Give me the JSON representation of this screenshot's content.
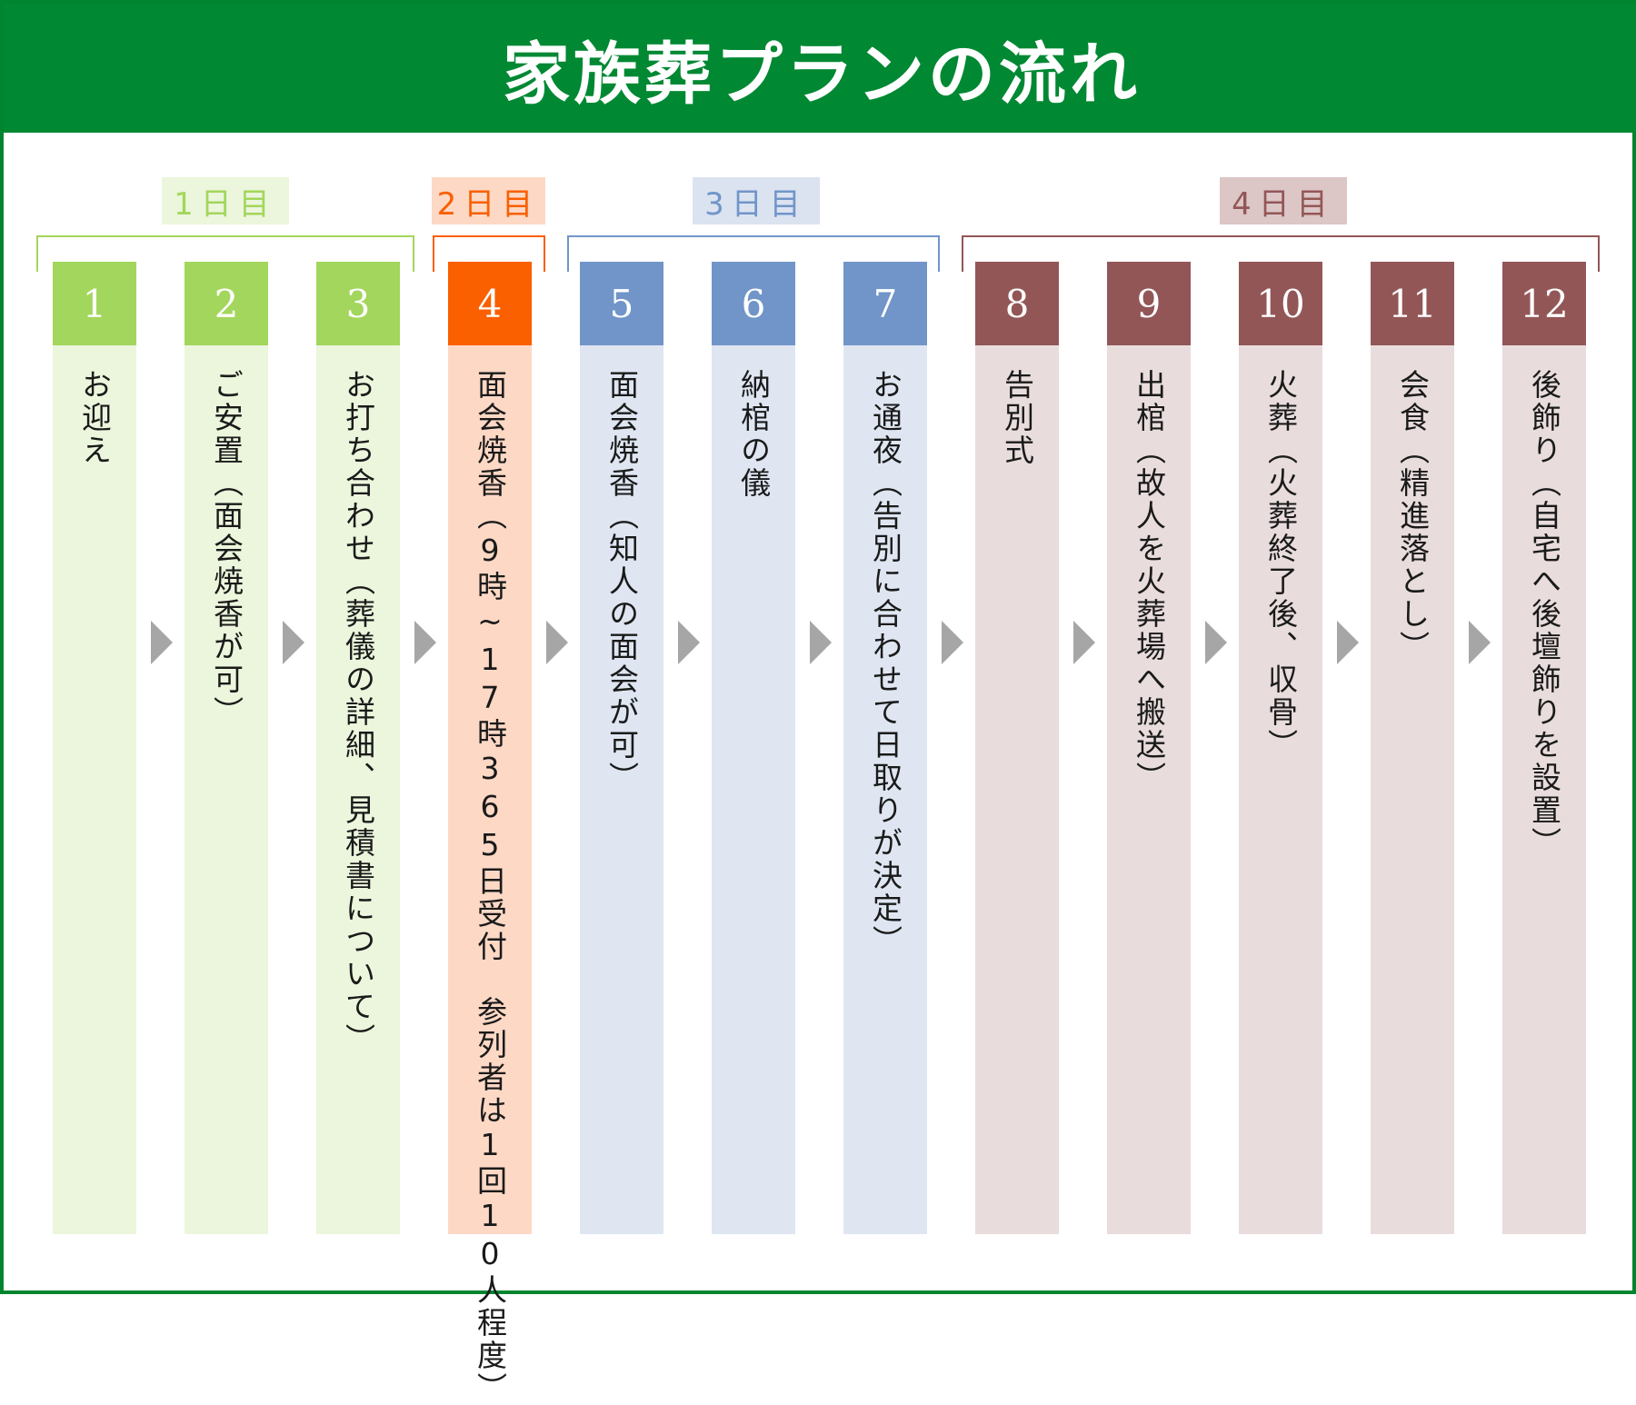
{
  "title": "家族葬プランの流れ",
  "colors": {
    "header": "#008833",
    "day1": "#a3d65c",
    "day2": "#fa5f00",
    "day3": "#7195c9",
    "day4": "#935657",
    "arrow": "#a6a6a6"
  },
  "days": [
    {
      "label": "1日目"
    },
    {
      "label": "2日目"
    },
    {
      "label": "3日目"
    },
    {
      "label": "4日目"
    }
  ],
  "steps": [
    {
      "number": "1",
      "text": "お迎え"
    },
    {
      "number": "2",
      "text": "ご安置（面会焼香が可）"
    },
    {
      "number": "3",
      "text": "お打ち合わせ（葬儀の詳細、見積書について）"
    },
    {
      "number": "4",
      "text": "面会焼香（9時~17時365日受付　参列者は1回10人程度）"
    },
    {
      "number": "5",
      "text": "面会焼香（知人の面会が可）"
    },
    {
      "number": "6",
      "text": "納棺の儀"
    },
    {
      "number": "7",
      "text": "お通夜（告別に合わせて日取りが決定）"
    },
    {
      "number": "8",
      "text": "告別式"
    },
    {
      "number": "9",
      "text": "出棺（故人を火葬場へ搬送）"
    },
    {
      "number": "10",
      "text": "火葬（火葬終了後、収骨）"
    },
    {
      "number": "11",
      "text": "会食（精進落とし）"
    },
    {
      "number": "12",
      "text": "後飾り（自宅へ後壇飾りを設置）"
    }
  ]
}
